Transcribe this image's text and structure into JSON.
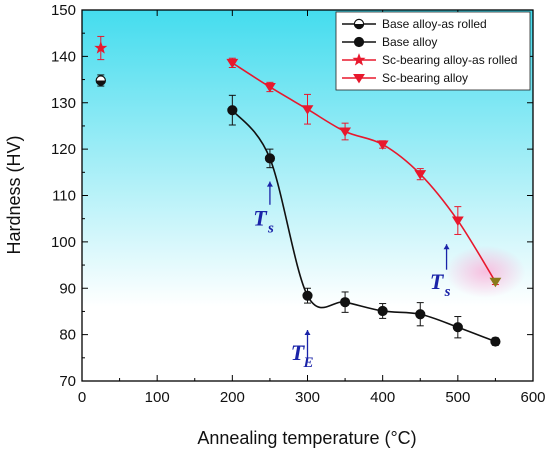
{
  "chart_data": {
    "type": "line",
    "xlabel": "Annealing temperature (°C)",
    "ylabel": "Hardness (HV)",
    "xlim": [
      0,
      600
    ],
    "ylim": [
      70,
      150
    ],
    "xticks": [
      0,
      100,
      200,
      300,
      400,
      500,
      600
    ],
    "yticks": [
      70,
      80,
      90,
      100,
      110,
      120,
      130,
      140,
      150
    ],
    "grid": false,
    "legend_position": "top-right",
    "series": [
      {
        "name": "Base alloy-as rolled",
        "marker": "half-filled-circle",
        "color": "#111111",
        "x": [
          25
        ],
        "y": [
          134.8
        ],
        "err": [
          1.2
        ]
      },
      {
        "name": "Base alloy",
        "marker": "circle",
        "color": "#111111",
        "x": [
          200,
          250,
          300,
          350,
          400,
          450,
          500,
          550
        ],
        "y": [
          128.4,
          118.0,
          88.4,
          87.0,
          85.1,
          84.4,
          81.6,
          78.5
        ],
        "err": [
          3.2,
          2.0,
          1.6,
          2.2,
          1.6,
          2.5,
          2.3,
          0.8
        ]
      },
      {
        "name": "Sc-bearing alloy-as rolled",
        "marker": "star",
        "color": "#e8182d",
        "x": [
          25
        ],
        "y": [
          141.8
        ],
        "err": [
          2.5
        ]
      },
      {
        "name": "Sc-bearing alloy",
        "marker": "triangle-down",
        "color": "#e8182d",
        "x": [
          200,
          250,
          300,
          350,
          400,
          450,
          500,
          550
        ],
        "y": [
          138.6,
          133.4,
          128.6,
          123.8,
          121.0,
          114.6,
          104.6,
          91.4
        ],
        "err": [
          1.0,
          1.0,
          3.2,
          1.8,
          0.8,
          1.2,
          3.0,
          0.6
        ]
      }
    ],
    "annotations": [
      {
        "main": "T",
        "sub": "s",
        "x": 250,
        "y": 103.5,
        "arrow_from": 108,
        "arrow_to": 113
      },
      {
        "main": "T",
        "sub": "E",
        "x": 300,
        "y": 74.5,
        "arrow_from": 75,
        "arrow_to": 81
      },
      {
        "main": "T",
        "sub": "s",
        "x": 485,
        "y": 89.8,
        "arrow_from": 94,
        "arrow_to": 99.5
      }
    ]
  },
  "colors": {
    "background_gradient": [
      "#44dcee",
      "#ffffff"
    ],
    "annotation": "#1a23a8"
  }
}
